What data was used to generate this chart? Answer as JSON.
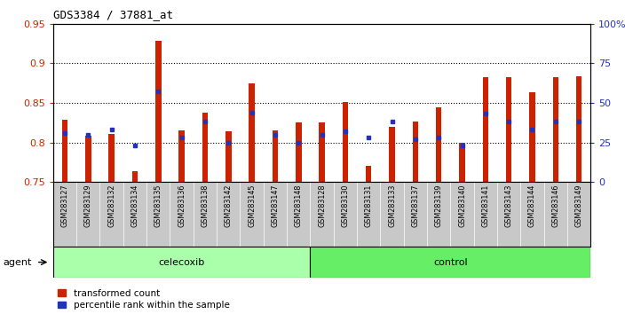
{
  "title": "GDS3384 / 37881_at",
  "samples": [
    "GSM283127",
    "GSM283129",
    "GSM283132",
    "GSM283134",
    "GSM283135",
    "GSM283136",
    "GSM283138",
    "GSM283142",
    "GSM283145",
    "GSM283147",
    "GSM283148",
    "GSM283128",
    "GSM283130",
    "GSM283131",
    "GSM283133",
    "GSM283137",
    "GSM283139",
    "GSM283140",
    "GSM283141",
    "GSM283143",
    "GSM283144",
    "GSM283146",
    "GSM283149"
  ],
  "red_values": [
    0.829,
    0.808,
    0.811,
    0.764,
    0.928,
    0.815,
    0.838,
    0.814,
    0.875,
    0.815,
    0.825,
    0.825,
    0.851,
    0.77,
    0.82,
    0.826,
    0.844,
    0.8,
    0.882,
    0.882,
    0.863,
    0.882,
    0.884
  ],
  "blue_pct": [
    31,
    30,
    33,
    23,
    57,
    28,
    38,
    25,
    44,
    30,
    25,
    30,
    32,
    28,
    38,
    27,
    28,
    23,
    43,
    38,
    33,
    38,
    38
  ],
  "celecoxib_count": 11,
  "control_count": 12,
  "ylim_left": [
    0.75,
    0.95
  ],
  "ylim_right": [
    0,
    100
  ],
  "yticks_left": [
    0.75,
    0.8,
    0.85,
    0.9,
    0.95
  ],
  "yticks_right": [
    0,
    25,
    50,
    75,
    100
  ],
  "ytick_right_labels": [
    "0",
    "25",
    "50",
    "75",
    "100%"
  ],
  "red_color": "#CC2200",
  "blue_color": "#2233BB",
  "bar_width": 0.25,
  "background_color": "#ffffff",
  "agent_label": "agent",
  "celecoxib_label": "celecoxib",
  "control_label": "control",
  "legend_red": "transformed count",
  "legend_blue": "percentile rank within the sample",
  "celecoxib_color": "#AAFFAA",
  "control_color": "#66EE66",
  "xtick_bg": "#C8C8C8"
}
